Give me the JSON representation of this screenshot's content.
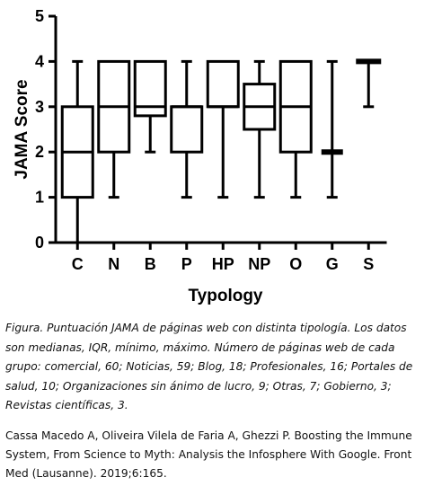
{
  "chart_data": {
    "type": "box",
    "ylabel": "JAMA Score",
    "xlabel": "Typology",
    "ylim": [
      0,
      5
    ],
    "yticks": [
      0,
      1,
      2,
      3,
      4,
      5
    ],
    "grid": false,
    "categories": [
      "C",
      "N",
      "B",
      "P",
      "HP",
      "NP",
      "O",
      "G",
      "S"
    ],
    "boxes": [
      {
        "category": "C",
        "min": 0,
        "q1": 1,
        "median": 2,
        "q3": 3,
        "max": 4
      },
      {
        "category": "N",
        "min": 1,
        "q1": 2,
        "median": 3,
        "q3": 4,
        "max": 4
      },
      {
        "category": "B",
        "min": 2,
        "q1": 2.8,
        "median": 3,
        "q3": 4,
        "max": 4
      },
      {
        "category": "P",
        "min": 1,
        "q1": 2,
        "median": 3,
        "q3": 3,
        "max": 4
      },
      {
        "category": "HP",
        "min": 1,
        "q1": 3,
        "median": 3,
        "q3": 4,
        "max": 4
      },
      {
        "category": "NP",
        "min": 1,
        "q1": 2.5,
        "median": 3,
        "q3": 3.5,
        "max": 4
      },
      {
        "category": "O",
        "min": 1,
        "q1": 2,
        "median": 3,
        "q3": 4,
        "max": 4
      },
      {
        "category": "G",
        "min": 1,
        "q1": 2,
        "median": 2,
        "q3": 2,
        "max": 4
      },
      {
        "category": "S",
        "min": 3,
        "q1": 4,
        "median": 4,
        "q3": 4,
        "max": 4
      }
    ]
  },
  "caption": "Figura. Puntuación JAMA de páginas web con distinta tipología. Los datos son medianas, IQR, mínimo, máximo. Número de páginas web de cada grupo: comercial, 60; Noticias, 59; Blog, 18; Profesionales, 16; Portales de salud, 10; Organizaciones sin ánimo de lucro, 9; Otras, 7; Gobierno, 3; Revistas científicas, 3.",
  "citation": "Cassa Macedo A, Oliveira Vilela de Faria A, Ghezzi P. Boosting the Immune System, From Science to Myth: Analysis the Infosphere With Google. Front Med (Lausanne). 2019;6:165."
}
